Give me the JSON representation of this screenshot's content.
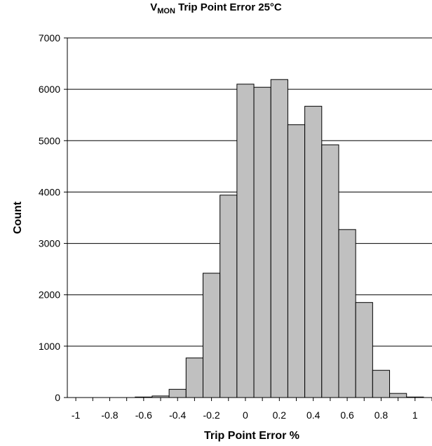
{
  "chart_data": {
    "type": "bar",
    "title_main": "V",
    "title_sub": "MON",
    "title_rest": " Trip Point Error 25°C",
    "xlabel": "Trip Point Error %",
    "ylabel": "Count",
    "ylim": [
      0,
      7000
    ],
    "yticks": [
      "0",
      "1000",
      "2000",
      "3000",
      "4000",
      "5000",
      "6000",
      "7000"
    ],
    "xlim": [
      -1.05,
      1.1
    ],
    "xticks": [
      {
        "value": -1,
        "label": "-1"
      },
      {
        "value": -0.8,
        "label": "-0.8"
      },
      {
        "value": -0.6,
        "label": "-0.6"
      },
      {
        "value": -0.4,
        "label": "-0.4"
      },
      {
        "value": -0.2,
        "label": "-0.2"
      },
      {
        "value": 0,
        "label": "0"
      },
      {
        "value": 0.2,
        "label": "0.2"
      },
      {
        "value": 0.4,
        "label": "0.4"
      },
      {
        "value": 0.6,
        "label": "0.6"
      },
      {
        "value": 0.8,
        "label": "0.8"
      },
      {
        "value": 1,
        "label": "1"
      }
    ],
    "bin_width": 0.1,
    "bins": [
      {
        "x": -0.6,
        "count": 10
      },
      {
        "x": -0.5,
        "count": 30
      },
      {
        "x": -0.4,
        "count": 160
      },
      {
        "x": -0.3,
        "count": 770
      },
      {
        "x": -0.2,
        "count": 2420
      },
      {
        "x": -0.1,
        "count": 3940
      },
      {
        "x": 0.0,
        "count": 6100
      },
      {
        "x": 0.1,
        "count": 6040
      },
      {
        "x": 0.2,
        "count": 6190
      },
      {
        "x": 0.3,
        "count": 5310
      },
      {
        "x": 0.4,
        "count": 5670
      },
      {
        "x": 0.5,
        "count": 4920
      },
      {
        "x": 0.6,
        "count": 3270
      },
      {
        "x": 0.7,
        "count": 1850
      },
      {
        "x": 0.8,
        "count": 530
      },
      {
        "x": 0.9,
        "count": 80
      },
      {
        "x": 1.0,
        "count": 10
      }
    ],
    "bar_color": "#c0c0c0",
    "bar_edge_color": "#000000",
    "grid": "horizontal"
  }
}
